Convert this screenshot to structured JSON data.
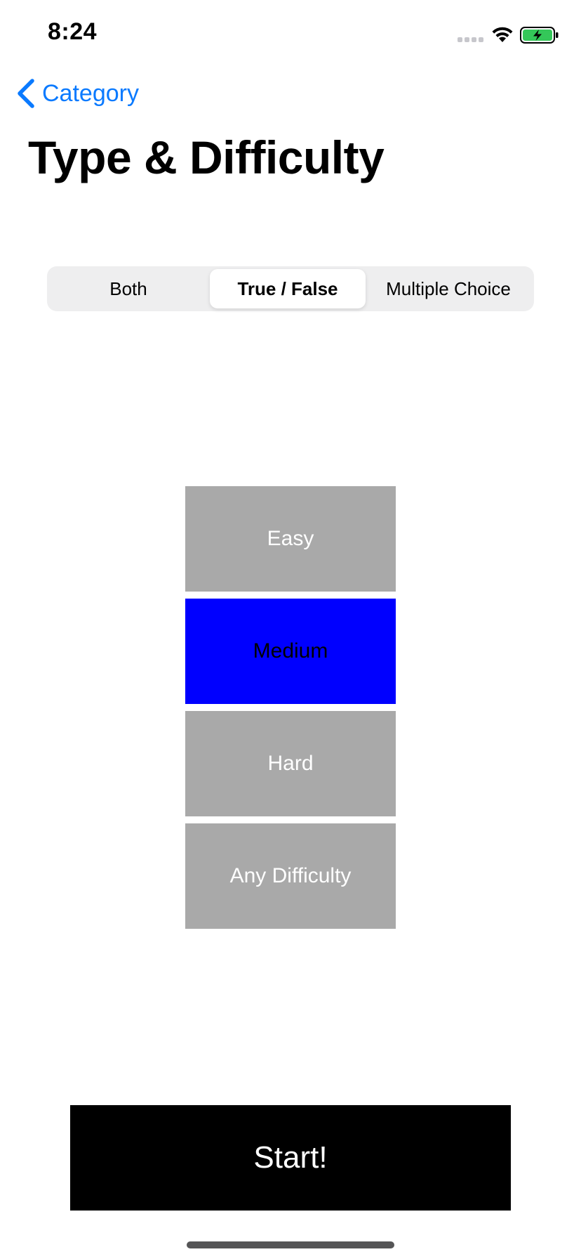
{
  "status_bar": {
    "time": "8:24",
    "signal_icon": "cellular-signal-icon",
    "wifi_icon": "wifi-icon",
    "battery_icon": "battery-charging-icon",
    "battery_color": "#34c759"
  },
  "nav": {
    "back_icon": "chevron-left-icon",
    "back_label": "Category",
    "accent_color": "#0a7aff"
  },
  "title": "Type & Difficulty",
  "question_type": {
    "options": [
      "Both",
      "True / False",
      "Multiple Choice"
    ],
    "selected": "True / False"
  },
  "difficulty": {
    "options": [
      "Easy",
      "Medium",
      "Hard",
      "Any Difficulty"
    ],
    "selected": "Medium",
    "selected_color": "#0000ff",
    "unselected_color": "#a9a9a9"
  },
  "start_label": "Start!"
}
